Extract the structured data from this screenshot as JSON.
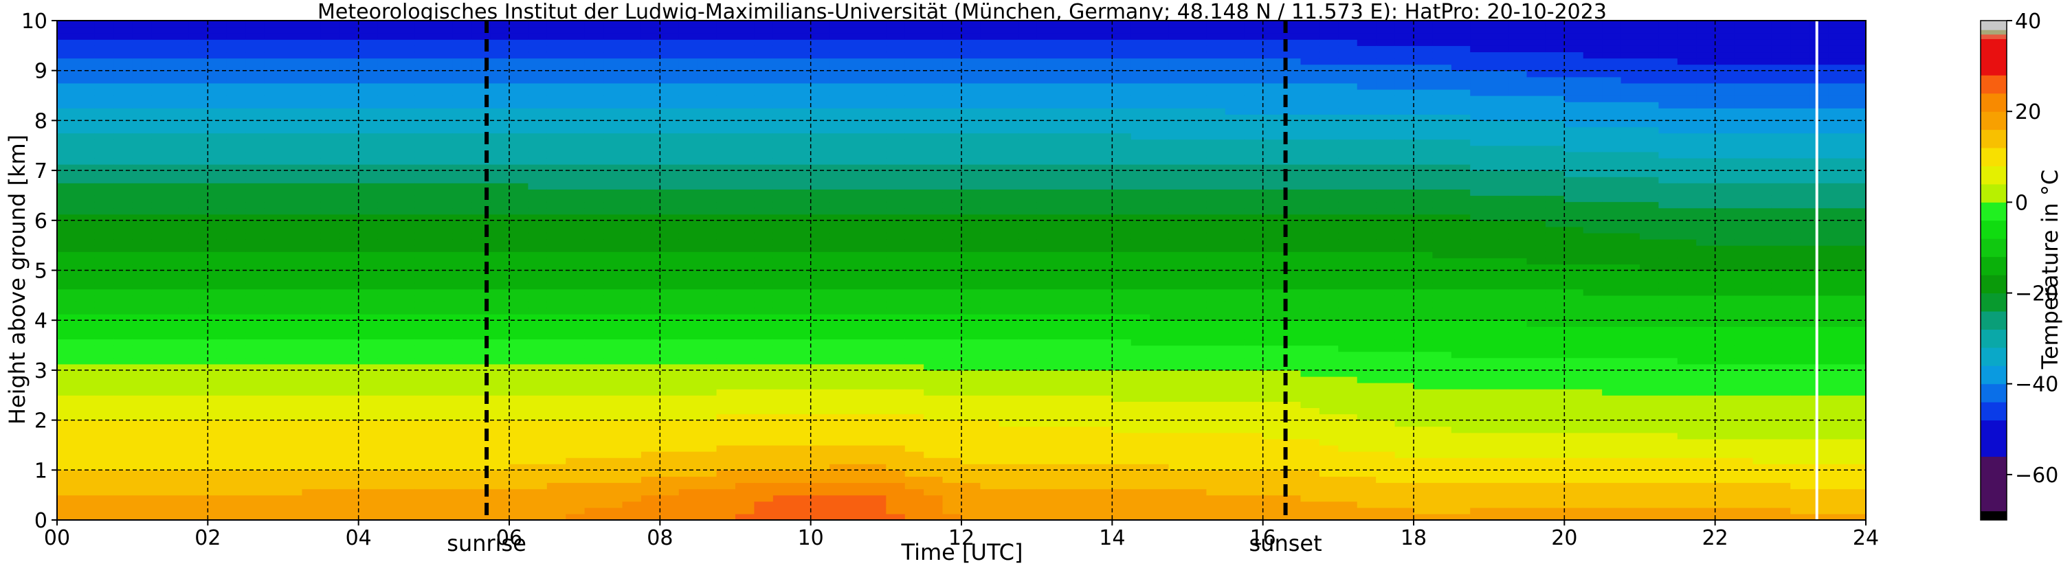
{
  "chart_data": {
    "type": "heatmap",
    "title": "Meteorologisches Institut der Ludwig-Maximilians-Universität (München, Germany; 48.148 N / 11.573 E):    HatPro: 20-10-2023",
    "xlabel": "Time [UTC]",
    "ylabel": "Height above ground [km]",
    "xlim": [
      0,
      24
    ],
    "ylim": [
      0,
      10
    ],
    "x_ticks": [
      0,
      2,
      4,
      6,
      8,
      10,
      12,
      14,
      16,
      18,
      20,
      22,
      24
    ],
    "x_tick_labels": [
      "00",
      "02",
      "04",
      "06",
      "08",
      "10",
      "12",
      "14",
      "16",
      "18",
      "20",
      "22",
      "24"
    ],
    "y_ticks": [
      0,
      1,
      2,
      3,
      4,
      5,
      6,
      7,
      8,
      9,
      10
    ],
    "y_tick_labels": [
      "0",
      "1",
      "2",
      "3",
      "4",
      "5",
      "6",
      "7",
      "8",
      "9",
      "10"
    ],
    "grid": true,
    "colorbar": {
      "label": "Temperature in $^\\circ$C",
      "range": [
        -70,
        40
      ],
      "ticks": [
        -60,
        -40,
        -20,
        0,
        20,
        40
      ],
      "tick_labels": [
        "−60",
        "−40",
        "−20",
        "0",
        "20",
        "40"
      ],
      "colors": [
        {
          "from": -70,
          "to": -68,
          "color": "#000000"
        },
        {
          "from": -68,
          "to": -56,
          "color": "#4a0f5e"
        },
        {
          "from": -56,
          "to": -48,
          "color": "#0b0bd0"
        },
        {
          "from": -48,
          "to": -44,
          "color": "#0a3ce8"
        },
        {
          "from": -44,
          "to": -40,
          "color": "#0a6fe8"
        },
        {
          "from": -40,
          "to": -36,
          "color": "#0a9ae0"
        },
        {
          "from": -36,
          "to": -32,
          "color": "#0aa8c8"
        },
        {
          "from": -32,
          "to": -28,
          "color": "#0aa8a8"
        },
        {
          "from": -28,
          "to": -24,
          "color": "#0a9e78"
        },
        {
          "from": -24,
          "to": -20,
          "color": "#089a2e"
        },
        {
          "from": -20,
          "to": -16,
          "color": "#0a9a0a"
        },
        {
          "from": -16,
          "to": -12,
          "color": "#0ab00a"
        },
        {
          "from": -12,
          "to": -8,
          "color": "#10c810"
        },
        {
          "from": -8,
          "to": -4,
          "color": "#10dc10"
        },
        {
          "from": -4,
          "to": 0,
          "color": "#20f020"
        },
        {
          "from": 0,
          "to": 4,
          "color": "#b8f000"
        },
        {
          "from": 4,
          "to": 8,
          "color": "#e4f000"
        },
        {
          "from": 8,
          "to": 12,
          "color": "#f8e000"
        },
        {
          "from": 12,
          "to": 16,
          "color": "#f8c000"
        },
        {
          "from": 16,
          "to": 20,
          "color": "#f8a000"
        },
        {
          "from": 20,
          "to": 24,
          "color": "#f88a00"
        },
        {
          "from": 24,
          "to": 28,
          "color": "#f86010"
        },
        {
          "from": 28,
          "to": 36,
          "color": "#e81010"
        },
        {
          "from": 36,
          "to": 37,
          "color": "#e85a40"
        },
        {
          "from": 37,
          "to": 38,
          "color": "#a8a878"
        },
        {
          "from": 38,
          "to": 40,
          "color": "#c8c8c8"
        }
      ]
    },
    "profile_heights_km": [
      0,
      0.5,
      1,
      1.5,
      2,
      2.5,
      3,
      3.5,
      4,
      4.5,
      5,
      5.5,
      6,
      6.5,
      7,
      7.5,
      8,
      8.5,
      9,
      9.5,
      10
    ],
    "profiles": [
      {
        "time": 0,
        "temps": [
          18,
          16,
          12,
          10,
          8,
          4,
          1,
          -3,
          -7,
          -11,
          -14,
          -17,
          -19,
          -22,
          -27,
          -30,
          -34,
          -38,
          -42,
          -47,
          -50
        ]
      },
      {
        "time": 5.7,
        "temps": [
          19,
          17,
          12,
          10,
          8,
          4,
          1,
          -3,
          -7,
          -11,
          -14,
          -17,
          -19,
          -22,
          -27,
          -30,
          -34,
          -38,
          -42,
          -47,
          -50
        ]
      },
      {
        "time": 8,
        "temps": [
          22,
          20,
          14,
          11,
          8,
          4,
          1,
          -3,
          -7,
          -11,
          -14,
          -17,
          -19,
          -23,
          -27,
          -30,
          -34,
          -38,
          -42,
          -47,
          -50
        ]
      },
      {
        "time": 9.5,
        "temps": [
          25,
          24,
          16,
          12,
          9,
          5,
          1,
          -3,
          -7,
          -11,
          -14,
          -17,
          -19,
          -23,
          -27,
          -30,
          -34,
          -38,
          -42,
          -47,
          -50
        ]
      },
      {
        "time": 10.8,
        "temps": [
          26,
          25,
          17,
          12,
          9,
          5,
          1,
          -3,
          -7,
          -11,
          -14,
          -17,
          -19,
          -23,
          -27,
          -30,
          -34,
          -38,
          -42,
          -47,
          -50
        ]
      },
      {
        "time": 12,
        "temps": [
          20,
          18,
          13,
          10,
          8,
          4,
          0,
          -3,
          -7,
          -11,
          -14,
          -17,
          -19,
          -23,
          -27,
          -30,
          -34,
          -38,
          -42,
          -47,
          -51
        ]
      },
      {
        "time": 16.3,
        "temps": [
          19,
          16,
          12,
          9,
          6,
          3,
          0,
          -4,
          -8,
          -11,
          -14,
          -17,
          -19,
          -23,
          -27,
          -31,
          -35,
          -38,
          -42,
          -47,
          -51
        ]
      },
      {
        "time": 18,
        "temps": [
          17,
          14,
          10,
          6,
          3,
          1,
          -2,
          -5,
          -8,
          -11,
          -14,
          -17,
          -19,
          -23,
          -27,
          -31,
          -35,
          -39,
          -43,
          -48,
          -51
        ]
      },
      {
        "time": 22,
        "temps": [
          18,
          14,
          10,
          5,
          2,
          0,
          -3,
          -6,
          -9,
          -12,
          -16,
          -20,
          -22,
          -26,
          -30,
          -34,
          -38,
          -42,
          -47,
          -51,
          -52
        ]
      },
      {
        "time": 24,
        "temps": [
          17,
          13,
          9,
          5,
          2,
          0,
          -3,
          -6,
          -9,
          -12,
          -16,
          -20,
          -22,
          -26,
          -30,
          -34,
          -38,
          -42,
          -47,
          -51,
          -52
        ]
      }
    ],
    "vertical_lines": [
      {
        "x": 5.7,
        "label": "sunrise",
        "style": "dashed",
        "color": "#000000"
      },
      {
        "x": 16.3,
        "label": "sunset",
        "style": "dashed",
        "color": "#000000"
      },
      {
        "x": 23.35,
        "label": "",
        "style": "solid",
        "color": "#ffffff"
      }
    ]
  }
}
